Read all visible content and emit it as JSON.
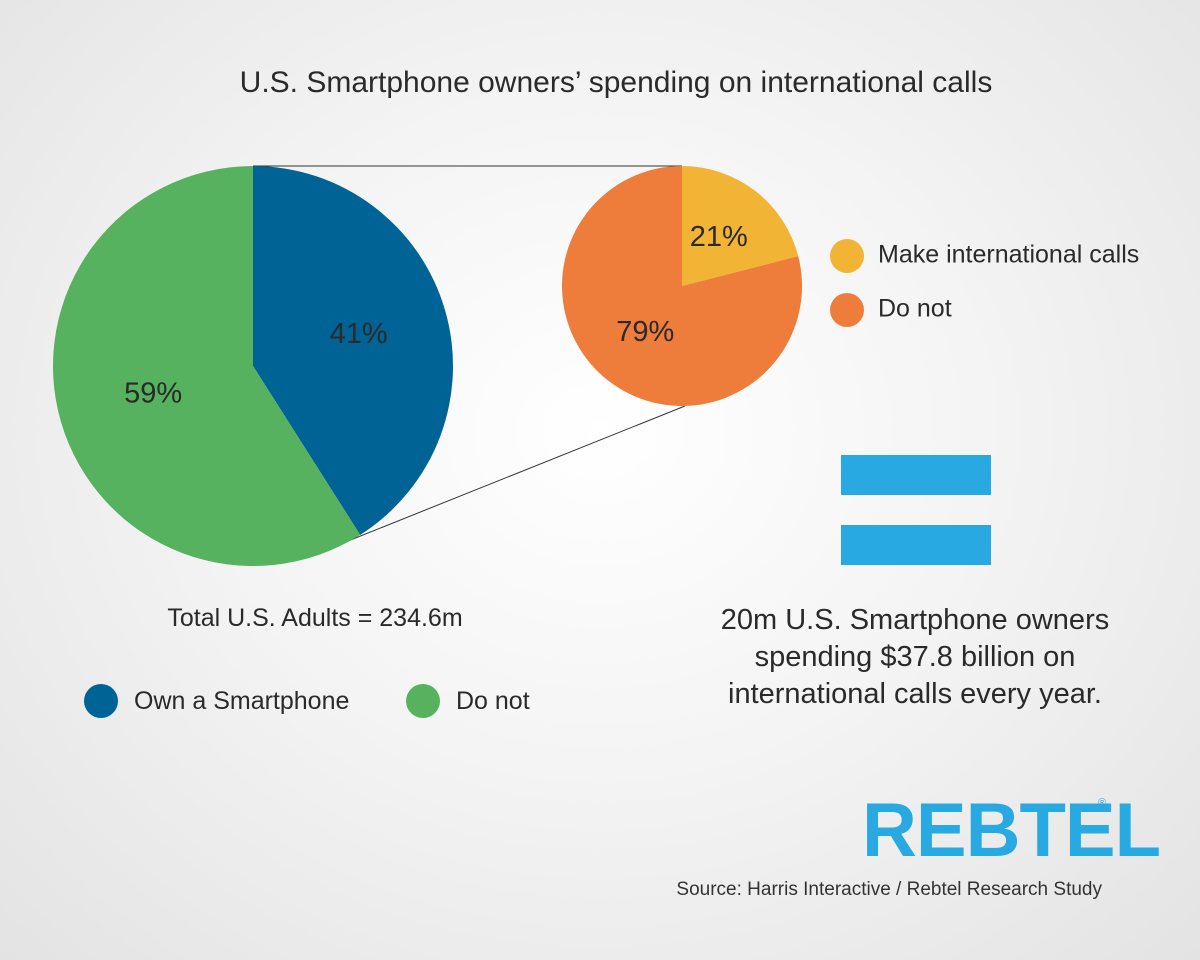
{
  "title": "U.S. Smartphone owners’ spending on international calls",
  "chart_data": [
    {
      "type": "pie",
      "name_hint": "main",
      "slices": [
        {
          "label": "Own a Smartphone",
          "value": 41,
          "display": "41%",
          "color": "#006395"
        },
        {
          "label": "Do not",
          "value": 59,
          "display": "59%",
          "color": "#56b25e"
        }
      ],
      "caption": "Total U.S. Adults = 234.6m",
      "legend_placement": "bottom"
    },
    {
      "type": "pie",
      "name_hint": "breakout",
      "slices": [
        {
          "label": "Make international calls",
          "value": 21,
          "display": "21%",
          "color": "#f2b434"
        },
        {
          "label": "Do not",
          "value": 79,
          "display": "79%",
          "color": "#ee7d3b"
        }
      ],
      "legend_placement": "right"
    }
  ],
  "summary": "20m U.S. Smartphone owners spending $37.8 billion on international calls every year.",
  "summary_lines": [
    "20m U.S. Smartphone owners",
    "spending $37.8 billion on",
    "international calls every year."
  ],
  "logo": {
    "text": "REBTEL",
    "registered": "®"
  },
  "source": "Source: Harris Interactive / Rebtel Research Study",
  "colors": {
    "accent": "#28a9e1",
    "background": "#f4f4f4"
  }
}
